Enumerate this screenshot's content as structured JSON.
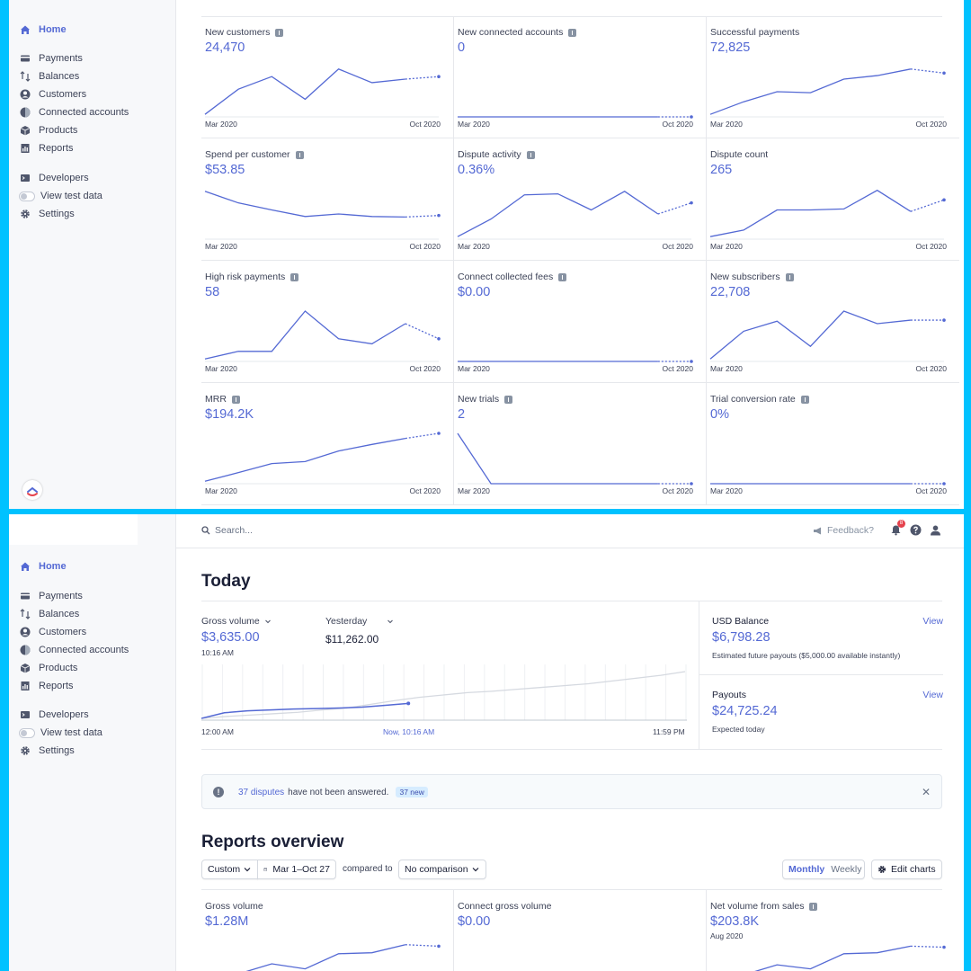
{
  "nav": {
    "home": "Home",
    "payments": "Payments",
    "balances": "Balances",
    "customers": "Customers",
    "connected_accounts": "Connected accounts",
    "products": "Products",
    "reports": "Reports",
    "developers": "Developers",
    "view_test_data": "View test data",
    "settings": "Settings"
  },
  "top_cards": [
    {
      "title": "New customers",
      "value": "24,470",
      "info": true,
      "x_start": "Mar 2020",
      "x_end": "Oct 2020",
      "series": [
        0.05,
        0.55,
        0.8,
        0.35,
        0.95,
        0.68,
        0.75,
        0.8
      ],
      "projected_from": 6
    },
    {
      "title": "New connected accounts",
      "value": "0",
      "info": true,
      "x_start": "Mar 2020",
      "x_end": "Oct 2020",
      "series": [
        0,
        0,
        0,
        0,
        0,
        0,
        0,
        0
      ],
      "projected_from": 6
    },
    {
      "title": "Successful payments",
      "value": "72,825",
      "info": false,
      "x_start": "Mar 2020",
      "x_end": "Oct 2020",
      "series": [
        0.05,
        0.3,
        0.5,
        0.48,
        0.75,
        0.82,
        0.95,
        0.87
      ],
      "projected_from": 6
    },
    {
      "title": "Spend per customer",
      "value": "$53.85",
      "info": true,
      "x_start": "Mar 2020",
      "x_end": "Oct 2020",
      "series": [
        0.95,
        0.72,
        0.58,
        0.45,
        0.5,
        0.45,
        0.44,
        0.47
      ],
      "projected_from": 6
    },
    {
      "title": "Dispute activity",
      "value": "0.36%",
      "info": true,
      "x_start": "Mar 2020",
      "x_end": "Oct 2020",
      "series": [
        0.05,
        0.4,
        0.88,
        0.9,
        0.58,
        0.95,
        0.5,
        0.72
      ],
      "projected_from": 6
    },
    {
      "title": "Dispute count",
      "value": "265",
      "info": false,
      "x_start": "Mar 2020",
      "x_end": "Oct 2020",
      "series": [
        0.05,
        0.18,
        0.58,
        0.58,
        0.6,
        0.97,
        0.55,
        0.78
      ],
      "projected_from": 6
    },
    {
      "title": "High risk payments",
      "value": "58",
      "info": true,
      "x_start": "Mar 2020",
      "x_end": "Oct 2020",
      "series": [
        0.05,
        0.2,
        0.2,
        1.0,
        0.45,
        0.35,
        0.75,
        0.45
      ],
      "projected_from": 6
    },
    {
      "title": "Connect collected fees",
      "value": "$0.00",
      "info": true,
      "x_start": "Mar 2020",
      "x_end": "Oct 2020",
      "series": [
        0,
        0,
        0,
        0,
        0,
        0,
        0,
        0
      ],
      "projected_from": 6
    },
    {
      "title": "New subscribers",
      "value": "22,708",
      "info": true,
      "x_start": "Mar 2020",
      "x_end": "Oct 2020",
      "series": [
        0.05,
        0.6,
        0.8,
        0.3,
        1.0,
        0.75,
        0.82,
        0.82
      ],
      "projected_from": 6
    },
    {
      "title": "MRR",
      "value": "$194.2K",
      "info": true,
      "x_start": "Mar 2020",
      "x_end": "Oct 2020",
      "series": [
        0.05,
        0.22,
        0.4,
        0.44,
        0.65,
        0.78,
        0.9,
        1.0
      ],
      "projected_from": 6
    },
    {
      "title": "New trials",
      "value": "2",
      "info": true,
      "x_start": "Mar 2020",
      "x_end": "Oct 2020",
      "series": [
        1.0,
        0.0,
        0.0,
        0.0,
        0.0,
        0.0,
        0.0,
        0.0
      ],
      "projected_from": 6
    },
    {
      "title": "Trial conversion rate",
      "value": "0%",
      "info": true,
      "x_start": "Mar 2020",
      "x_end": "Oct 2020",
      "series": [
        0,
        0,
        0,
        0,
        0,
        0,
        0,
        0
      ],
      "projected_from": 6
    }
  ],
  "topbar": {
    "search_placeholder": "Search...",
    "feedback": "Feedback?",
    "notification_count": "8"
  },
  "today": {
    "title": "Today",
    "gross_volume_label": "Gross volume",
    "gross_volume_value": "$3,635.00",
    "gross_volume_time": "10:16 AM",
    "yesterday_label": "Yesterday",
    "yesterday_value": "$11,262.00",
    "x_start": "12:00 AM",
    "x_now": "Now, 10:16 AM",
    "x_end": "11:59 PM",
    "today_series": [
      0.0,
      0.12,
      0.16,
      0.18,
      0.2,
      0.21,
      0.22,
      0.24,
      0.28,
      0.32
    ],
    "yesterday_series": [
      0.0,
      0.04,
      0.07,
      0.1,
      0.13,
      0.18,
      0.22,
      0.3,
      0.38,
      0.45,
      0.5,
      0.55,
      0.58,
      0.62,
      0.66,
      0.7,
      0.74,
      0.8,
      0.86,
      0.92,
      1.0
    ]
  },
  "usd_balance": {
    "label": "USD Balance",
    "view": "View",
    "value": "$6,798.28",
    "note": "Estimated future payouts ($5,000.00 available instantly)"
  },
  "payouts": {
    "label": "Payouts",
    "view": "View",
    "value": "$24,725.24",
    "note": "Expected today"
  },
  "alert": {
    "link": "37 disputes",
    "text": "have not been answered.",
    "badge": "37 new"
  },
  "reports": {
    "title": "Reports overview",
    "range_select": "Custom",
    "date_range": "Mar 1–Oct 27",
    "compared_to": "compared to",
    "comparison_select": "No comparison",
    "monthly": "Monthly",
    "weekly": "Weekly",
    "edit_charts": "Edit charts"
  },
  "bottom_cards": [
    {
      "title": "Gross volume",
      "value": "$1.28M",
      "sub": "",
      "info": false,
      "series": [
        0.05,
        0.3,
        0.5,
        0.4,
        0.7,
        0.72,
        0.88,
        0.85
      ],
      "projected_from": 6
    },
    {
      "title": "Connect gross volume",
      "value": "$0.00",
      "sub": "",
      "info": false,
      "series": [],
      "projected_from": 6
    },
    {
      "title": "Net volume from sales",
      "value": "$203.8K",
      "sub": "Aug 2020",
      "info": true,
      "series": [
        0.05,
        0.28,
        0.48,
        0.4,
        0.7,
        0.72,
        0.85,
        0.83
      ],
      "projected_from": 6
    }
  ],
  "colors": {
    "accent": "#5469d4",
    "frame": "#00c2ff",
    "badge_red": "#e5424d"
  }
}
